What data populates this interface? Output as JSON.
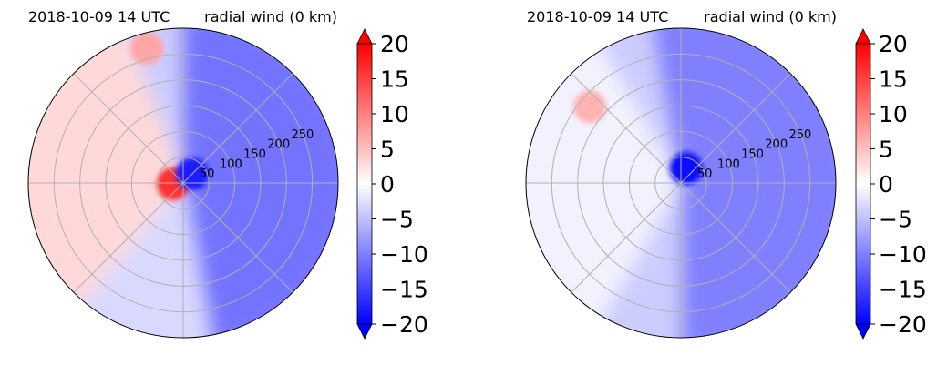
{
  "chart_data": [
    {
      "type": "heatmap",
      "projection": "polar",
      "title_left": "2018-10-09 14 UTC",
      "title_right": "radial wind (0 km)",
      "title_left_color": "#0000ff",
      "radial_ticks": [
        50,
        100,
        150,
        200,
        250
      ],
      "radial_tick_labels": [
        "50",
        "100",
        "150",
        "200",
        "250"
      ],
      "angular_gridlines_deg": [
        0,
        45,
        90,
        135,
        180,
        225,
        270,
        315
      ],
      "rmax": 300,
      "colorbar": {
        "ticks": [
          -20,
          -15,
          -10,
          -5,
          0,
          5,
          10,
          15,
          20
        ],
        "tick_labels": [
          "−20",
          "−15",
          "−10",
          "−5",
          "0",
          "5",
          "10",
          "15",
          "20"
        ],
        "range": [
          -20,
          20
        ],
        "extend": "both",
        "cmap": "bwr",
        "colors": {
          "min": "#0000ff",
          "mid": "#ffffff",
          "max": "#ff0000"
        }
      },
      "field_features": [
        {
          "sector_deg": [
            110,
            230
          ],
          "value": 3
        },
        {
          "sector_deg": [
            -80,
            90
          ],
          "value": -11
        },
        {
          "sector_deg": [
            230,
            280
          ],
          "value": -3
        },
        {
          "angle_deg": 185,
          "radius": 20,
          "value": 16
        },
        {
          "angle_deg": 105,
          "radius": 270,
          "value": 7
        },
        {
          "angle_deg": 45,
          "radius": 25,
          "value": -18
        }
      ]
    },
    {
      "type": "heatmap",
      "projection": "polar",
      "title_left": "2018-10-09 14 UTC",
      "title_right": "radial wind (0 km)",
      "title_left_color": "#0000ff",
      "radial_ticks": [
        50,
        100,
        150,
        200,
        250
      ],
      "radial_tick_labels": [
        "50",
        "100",
        "150",
        "200",
        "250"
      ],
      "angular_gridlines_deg": [
        0,
        45,
        90,
        135,
        180,
        225,
        270,
        315
      ],
      "rmax": 300,
      "colorbar": {
        "ticks": [
          -20,
          -15,
          -10,
          -5,
          0,
          5,
          10,
          15,
          20
        ],
        "tick_labels": [
          "−20",
          "−15",
          "−10",
          "−5",
          "0",
          "5",
          "10",
          "15",
          "20"
        ],
        "range": [
          -20,
          20
        ],
        "extend": "both",
        "cmap": "bwr",
        "colors": {
          "min": "#0000ff",
          "mid": "#ffffff",
          "max": "#ff0000"
        }
      },
      "field_features": [
        {
          "sector_deg": [
            120,
            240
          ],
          "value": -1
        },
        {
          "sector_deg": [
            -90,
            100
          ],
          "value": -10
        },
        {
          "sector_deg": [
            240,
            270
          ],
          "value": -4
        },
        {
          "angle_deg": 140,
          "radius": 230,
          "value": 6
        },
        {
          "angle_deg": 70,
          "radius": 30,
          "value": -19
        }
      ]
    }
  ]
}
